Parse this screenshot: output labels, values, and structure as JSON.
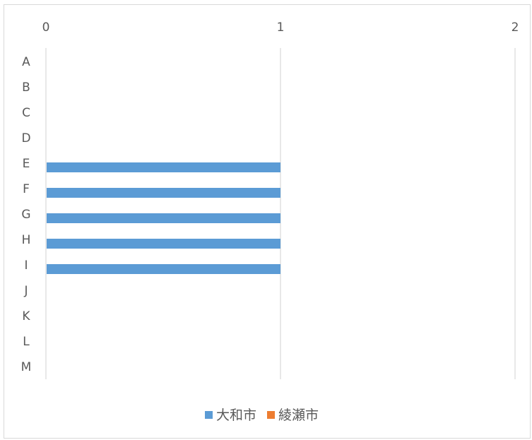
{
  "chart_data": {
    "type": "bar",
    "orientation": "horizontal",
    "categories": [
      "A",
      "B",
      "C",
      "D",
      "E",
      "F",
      "G",
      "H",
      "I",
      "J",
      "K",
      "L",
      "M"
    ],
    "series": [
      {
        "name": "大和市",
        "color": "#5b9bd5",
        "values": [
          0,
          0,
          0,
          0,
          1,
          1,
          1,
          1,
          1,
          0,
          0,
          0,
          0
        ]
      },
      {
        "name": "綾瀬市",
        "color": "#ed7d31",
        "values": [
          0,
          0,
          0,
          0,
          0,
          0,
          0,
          0,
          0,
          0,
          0,
          0,
          0
        ]
      }
    ],
    "xlim": [
      0,
      2
    ],
    "xticks": [
      "0",
      "1",
      "2"
    ],
    "x_axis_position": "top",
    "grid": true,
    "legend_position": "bottom"
  }
}
